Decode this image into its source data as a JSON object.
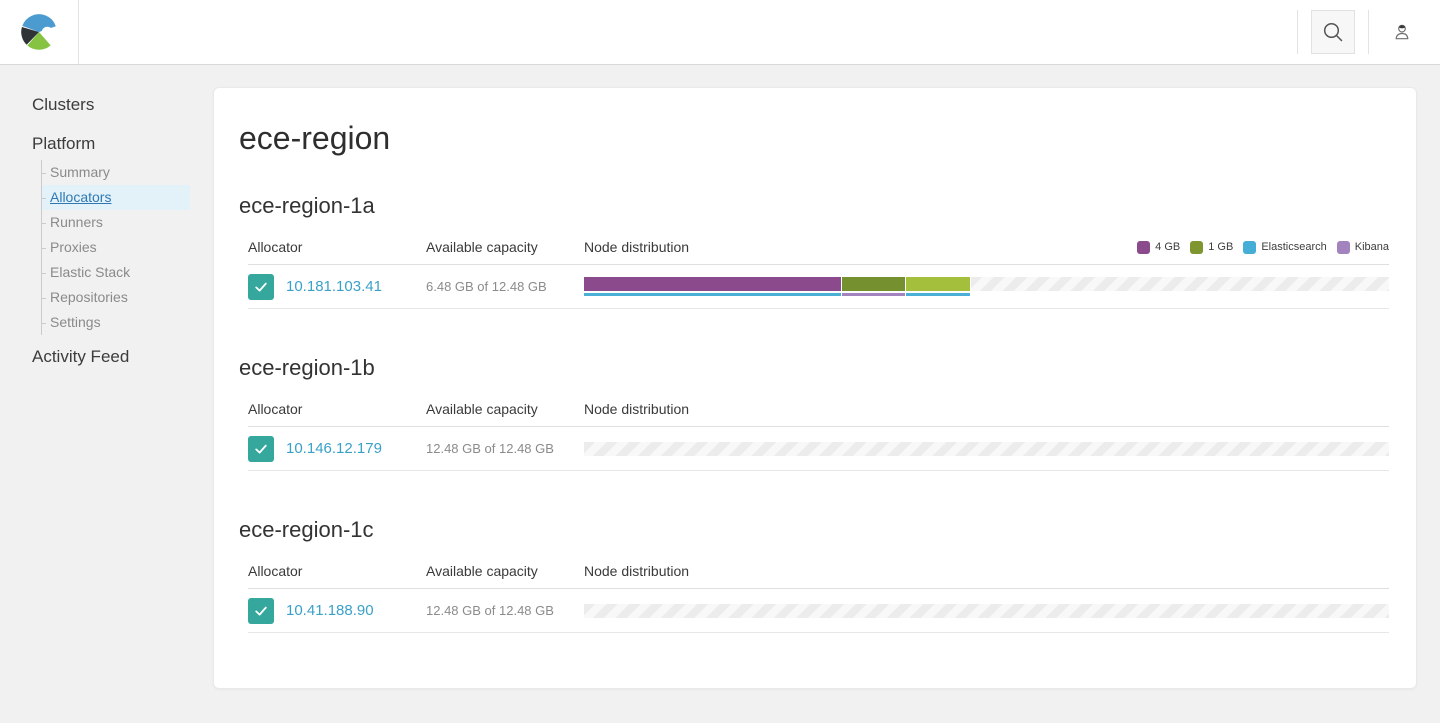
{
  "header": {
    "icons": {
      "logo": "ece-logo",
      "search": "search-icon",
      "user": "user-icon"
    },
    "colors": {
      "logo_blue": "#4b9bd1",
      "logo_dark": "#2f3236",
      "logo_green": "#86c342"
    }
  },
  "sidebar": {
    "clusters_label": "Clusters",
    "platform_label": "Platform",
    "platform_items": [
      {
        "label": "Summary",
        "active": false
      },
      {
        "label": "Allocators",
        "active": true
      },
      {
        "label": "Runners",
        "active": false
      },
      {
        "label": "Proxies",
        "active": false
      },
      {
        "label": "Elastic Stack",
        "active": false
      },
      {
        "label": "Repositories",
        "active": false
      },
      {
        "label": "Settings",
        "active": false
      }
    ],
    "activity_feed_label": "Activity Feed",
    "active_bg": "#e3f1f9",
    "active_link_color": "#2e79b5"
  },
  "main": {
    "title": "ece-region",
    "columns": [
      "Allocator",
      "Available capacity",
      "Node distribution"
    ],
    "legend": [
      {
        "label": "4 GB",
        "color": "#8a4a8c"
      },
      {
        "label": "1 GB",
        "color": "#7f9630"
      },
      {
        "label": "Elasticsearch",
        "color": "#45aed6"
      },
      {
        "label": "Kibana",
        "color": "#a383be"
      }
    ],
    "type_colors": {
      "elasticsearch": "#4cb0d6",
      "kibana": "#a383be"
    },
    "link_color": "#3aa0c8",
    "check_color": "#35a79c",
    "sections": [
      {
        "name": "ece-region-1a",
        "rows": [
          {
            "allocator": "10.181.103.41",
            "capacity": "6.48 GB of 12.48 GB",
            "total_gb": 12.48,
            "segments": [
              {
                "size_gb": 4,
                "color": "#8a4a8c",
                "type": "elasticsearch"
              },
              {
                "size_gb": 1,
                "color": "#75912f",
                "type": "kibana"
              },
              {
                "size_gb": 1,
                "color": "#a4bf3b",
                "type": "elasticsearch"
              }
            ]
          }
        ]
      },
      {
        "name": "ece-region-1b",
        "rows": [
          {
            "allocator": "10.146.12.179",
            "capacity": "12.48 GB of 12.48 GB",
            "total_gb": 12.48,
            "segments": []
          }
        ]
      },
      {
        "name": "ece-region-1c",
        "rows": [
          {
            "allocator": "10.41.188.90",
            "capacity": "12.48 GB of 12.48 GB",
            "total_gb": 12.48,
            "segments": []
          }
        ]
      }
    ]
  },
  "chart_data": {
    "type": "bar",
    "title": "Node distribution per allocator (GB used of total)",
    "categories": [
      "10.181.103.41",
      "10.146.12.179",
      "10.41.188.90"
    ],
    "series": [
      {
        "name": "Elasticsearch 4 GB",
        "values": [
          4,
          0,
          0
        ]
      },
      {
        "name": "Kibana 1 GB",
        "values": [
          1,
          0,
          0
        ]
      },
      {
        "name": "Elasticsearch 1 GB",
        "values": [
          1,
          0,
          0
        ]
      }
    ],
    "totals_gb": [
      12.48,
      12.48,
      12.48
    ],
    "xlim": [
      0,
      12.48
    ]
  }
}
